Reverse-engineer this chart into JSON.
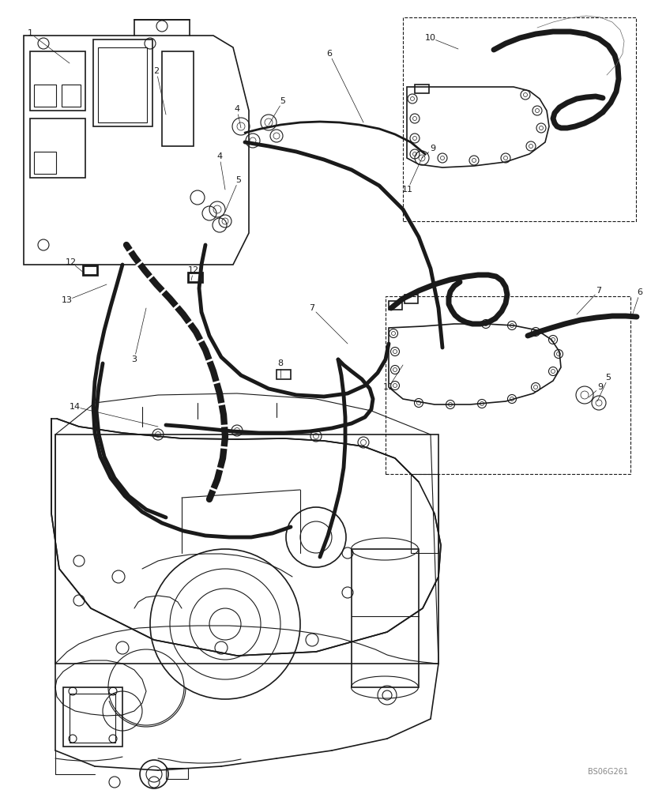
{
  "watermark": "BS06G261",
  "bg": "#ffffff",
  "lc": "#1a1a1a",
  "fig_w": 8.24,
  "fig_h": 10.0,
  "dpi": 100
}
